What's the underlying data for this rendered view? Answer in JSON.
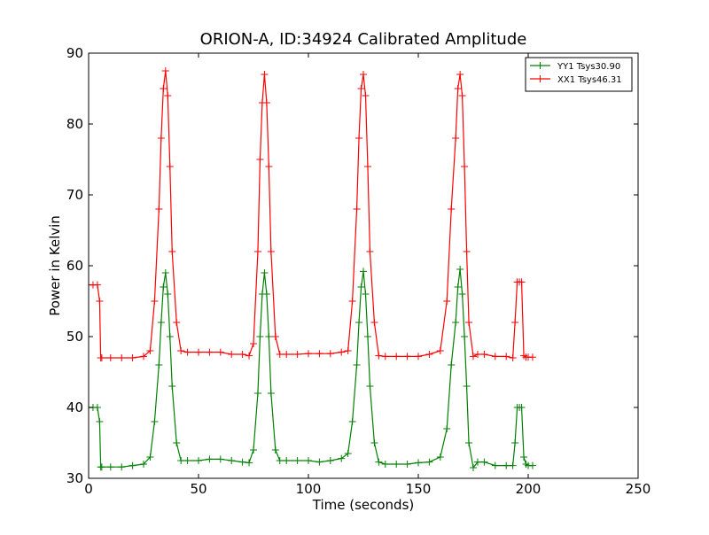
{
  "chart_data": {
    "type": "line",
    "title": "ORION-A, ID:34924 Calibrated Amplitude",
    "xlabel": "Time (seconds)",
    "ylabel": "Power in Kelvin",
    "xlim": [
      0,
      250
    ],
    "ylim": [
      30,
      90
    ],
    "xticks": [
      0,
      50,
      100,
      150,
      200,
      250
    ],
    "yticks": [
      30,
      40,
      50,
      60,
      70,
      80,
      90
    ],
    "grid": false,
    "legend_position": "top-right",
    "series": [
      {
        "name": "YY1 Tsys30.90",
        "color": "#008000",
        "marker": "+",
        "x": [
          0,
          2,
          4,
          5,
          5.5,
          6,
          10,
          15,
          20,
          25,
          28,
          30,
          32,
          33,
          34,
          35,
          36,
          37,
          38,
          40,
          42,
          45,
          50,
          55,
          60,
          65,
          70,
          73,
          75,
          77,
          78,
          79,
          80,
          81,
          82,
          83,
          85,
          87,
          90,
          95,
          100,
          105,
          110,
          115,
          118,
          120,
          122,
          123,
          124,
          125,
          126,
          127,
          128,
          130,
          132,
          135,
          140,
          145,
          150,
          155,
          160,
          163,
          165,
          167,
          168,
          169,
          170,
          171,
          172,
          173,
          175,
          177,
          180,
          185,
          190,
          193,
          194,
          195,
          196,
          197,
          198,
          199,
          200,
          202
        ],
        "values": [
          40,
          40,
          40,
          38,
          31.6,
          31.6,
          31.6,
          31.6,
          31.8,
          32,
          33,
          38,
          46,
          52,
          57,
          59,
          56,
          50,
          43,
          35,
          32.5,
          32.5,
          32.5,
          32.7,
          32.7,
          32.5,
          32.3,
          32.2,
          34,
          42,
          50,
          56,
          59,
          56,
          50,
          42,
          34,
          32.5,
          32.5,
          32.5,
          32.5,
          32.3,
          32.5,
          32.8,
          33.5,
          38,
          46,
          52,
          57,
          59.2,
          56,
          50,
          43,
          35,
          32.3,
          32,
          32,
          32,
          32.2,
          32.3,
          33,
          37,
          46,
          52,
          57,
          59.5,
          56,
          50,
          43,
          35,
          31.5,
          32.3,
          32.3,
          31.8,
          31.8,
          31.8,
          35,
          40,
          40,
          40,
          33,
          32,
          31.8,
          31.8
        ]
      },
      {
        "name": "XX1 Tsys46.31",
        "color": "#ff0000",
        "marker": "+",
        "x": [
          0,
          2,
          4,
          5,
          5.5,
          6,
          10,
          15,
          20,
          25,
          28,
          30,
          32,
          33,
          34,
          35,
          36,
          37,
          38,
          40,
          42,
          45,
          50,
          55,
          60,
          65,
          70,
          73,
          75,
          77,
          78,
          79,
          80,
          81,
          82,
          83,
          85,
          87,
          90,
          95,
          100,
          105,
          110,
          115,
          118,
          120,
          122,
          123,
          124,
          125,
          126,
          127,
          128,
          130,
          132,
          135,
          140,
          145,
          150,
          155,
          160,
          163,
          165,
          167,
          168,
          169,
          170,
          171,
          172,
          173,
          175,
          177,
          180,
          185,
          190,
          193,
          194,
          195,
          196,
          197,
          198,
          199,
          200,
          202
        ],
        "values": [
          57.3,
          57.3,
          57.3,
          55,
          47,
          47,
          47,
          47,
          47,
          47.2,
          48,
          55,
          68,
          78,
          85,
          87.5,
          84,
          74,
          62,
          52,
          48,
          47.8,
          47.8,
          47.8,
          47.8,
          47.5,
          47.5,
          47.3,
          49,
          62,
          75,
          83,
          87,
          83,
          74,
          62,
          50,
          47.5,
          47.5,
          47.5,
          47.6,
          47.6,
          47.6,
          47.8,
          48,
          55,
          68,
          78,
          85,
          87,
          84,
          74,
          62,
          52,
          47.3,
          47.2,
          47.2,
          47.2,
          47.2,
          47.5,
          48,
          55,
          68,
          78,
          85,
          87,
          84,
          74,
          62,
          52,
          47.2,
          47.5,
          47.5,
          47.2,
          47.2,
          47,
          52,
          57.7,
          57.7,
          57.7,
          47.3,
          47.1,
          47.1,
          47.1
        ]
      }
    ]
  }
}
